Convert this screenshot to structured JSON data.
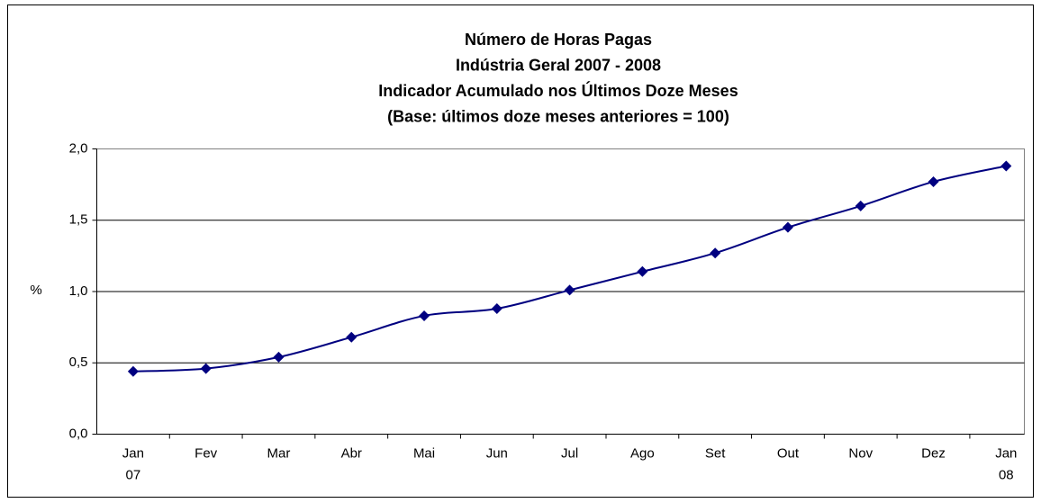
{
  "chart_data": {
    "type": "line",
    "title": [
      "Número de Horas Pagas",
      "Indústria Geral 2007 - 2008",
      "Indicador Acumulado nos Últimos Doze Meses",
      "(Base: últimos doze meses anteriores = 100)"
    ],
    "y_label": "%",
    "categories": [
      "Jan 07",
      "Fev",
      "Mar",
      "Abr",
      "Mai",
      "Jun",
      "Jul",
      "Ago",
      "Set",
      "Out",
      "Nov",
      "Dez",
      "Jan 08"
    ],
    "series": [
      {
        "color": "#000080",
        "values": [
          0.44,
          0.46,
          0.54,
          0.68,
          0.83,
          0.88,
          1.01,
          1.14,
          1.27,
          1.45,
          1.6,
          1.77,
          1.88
        ]
      }
    ],
    "ylim": [
      0,
      2
    ],
    "yticks": [
      {
        "value": 0,
        "label": "0,0"
      },
      {
        "value": 0.5,
        "label": "0,5"
      },
      {
        "value": 1,
        "label": "1,0"
      },
      {
        "value": 1.5,
        "label": "1,5"
      },
      {
        "value": 2,
        "label": "2,0"
      }
    ],
    "grid": true
  }
}
